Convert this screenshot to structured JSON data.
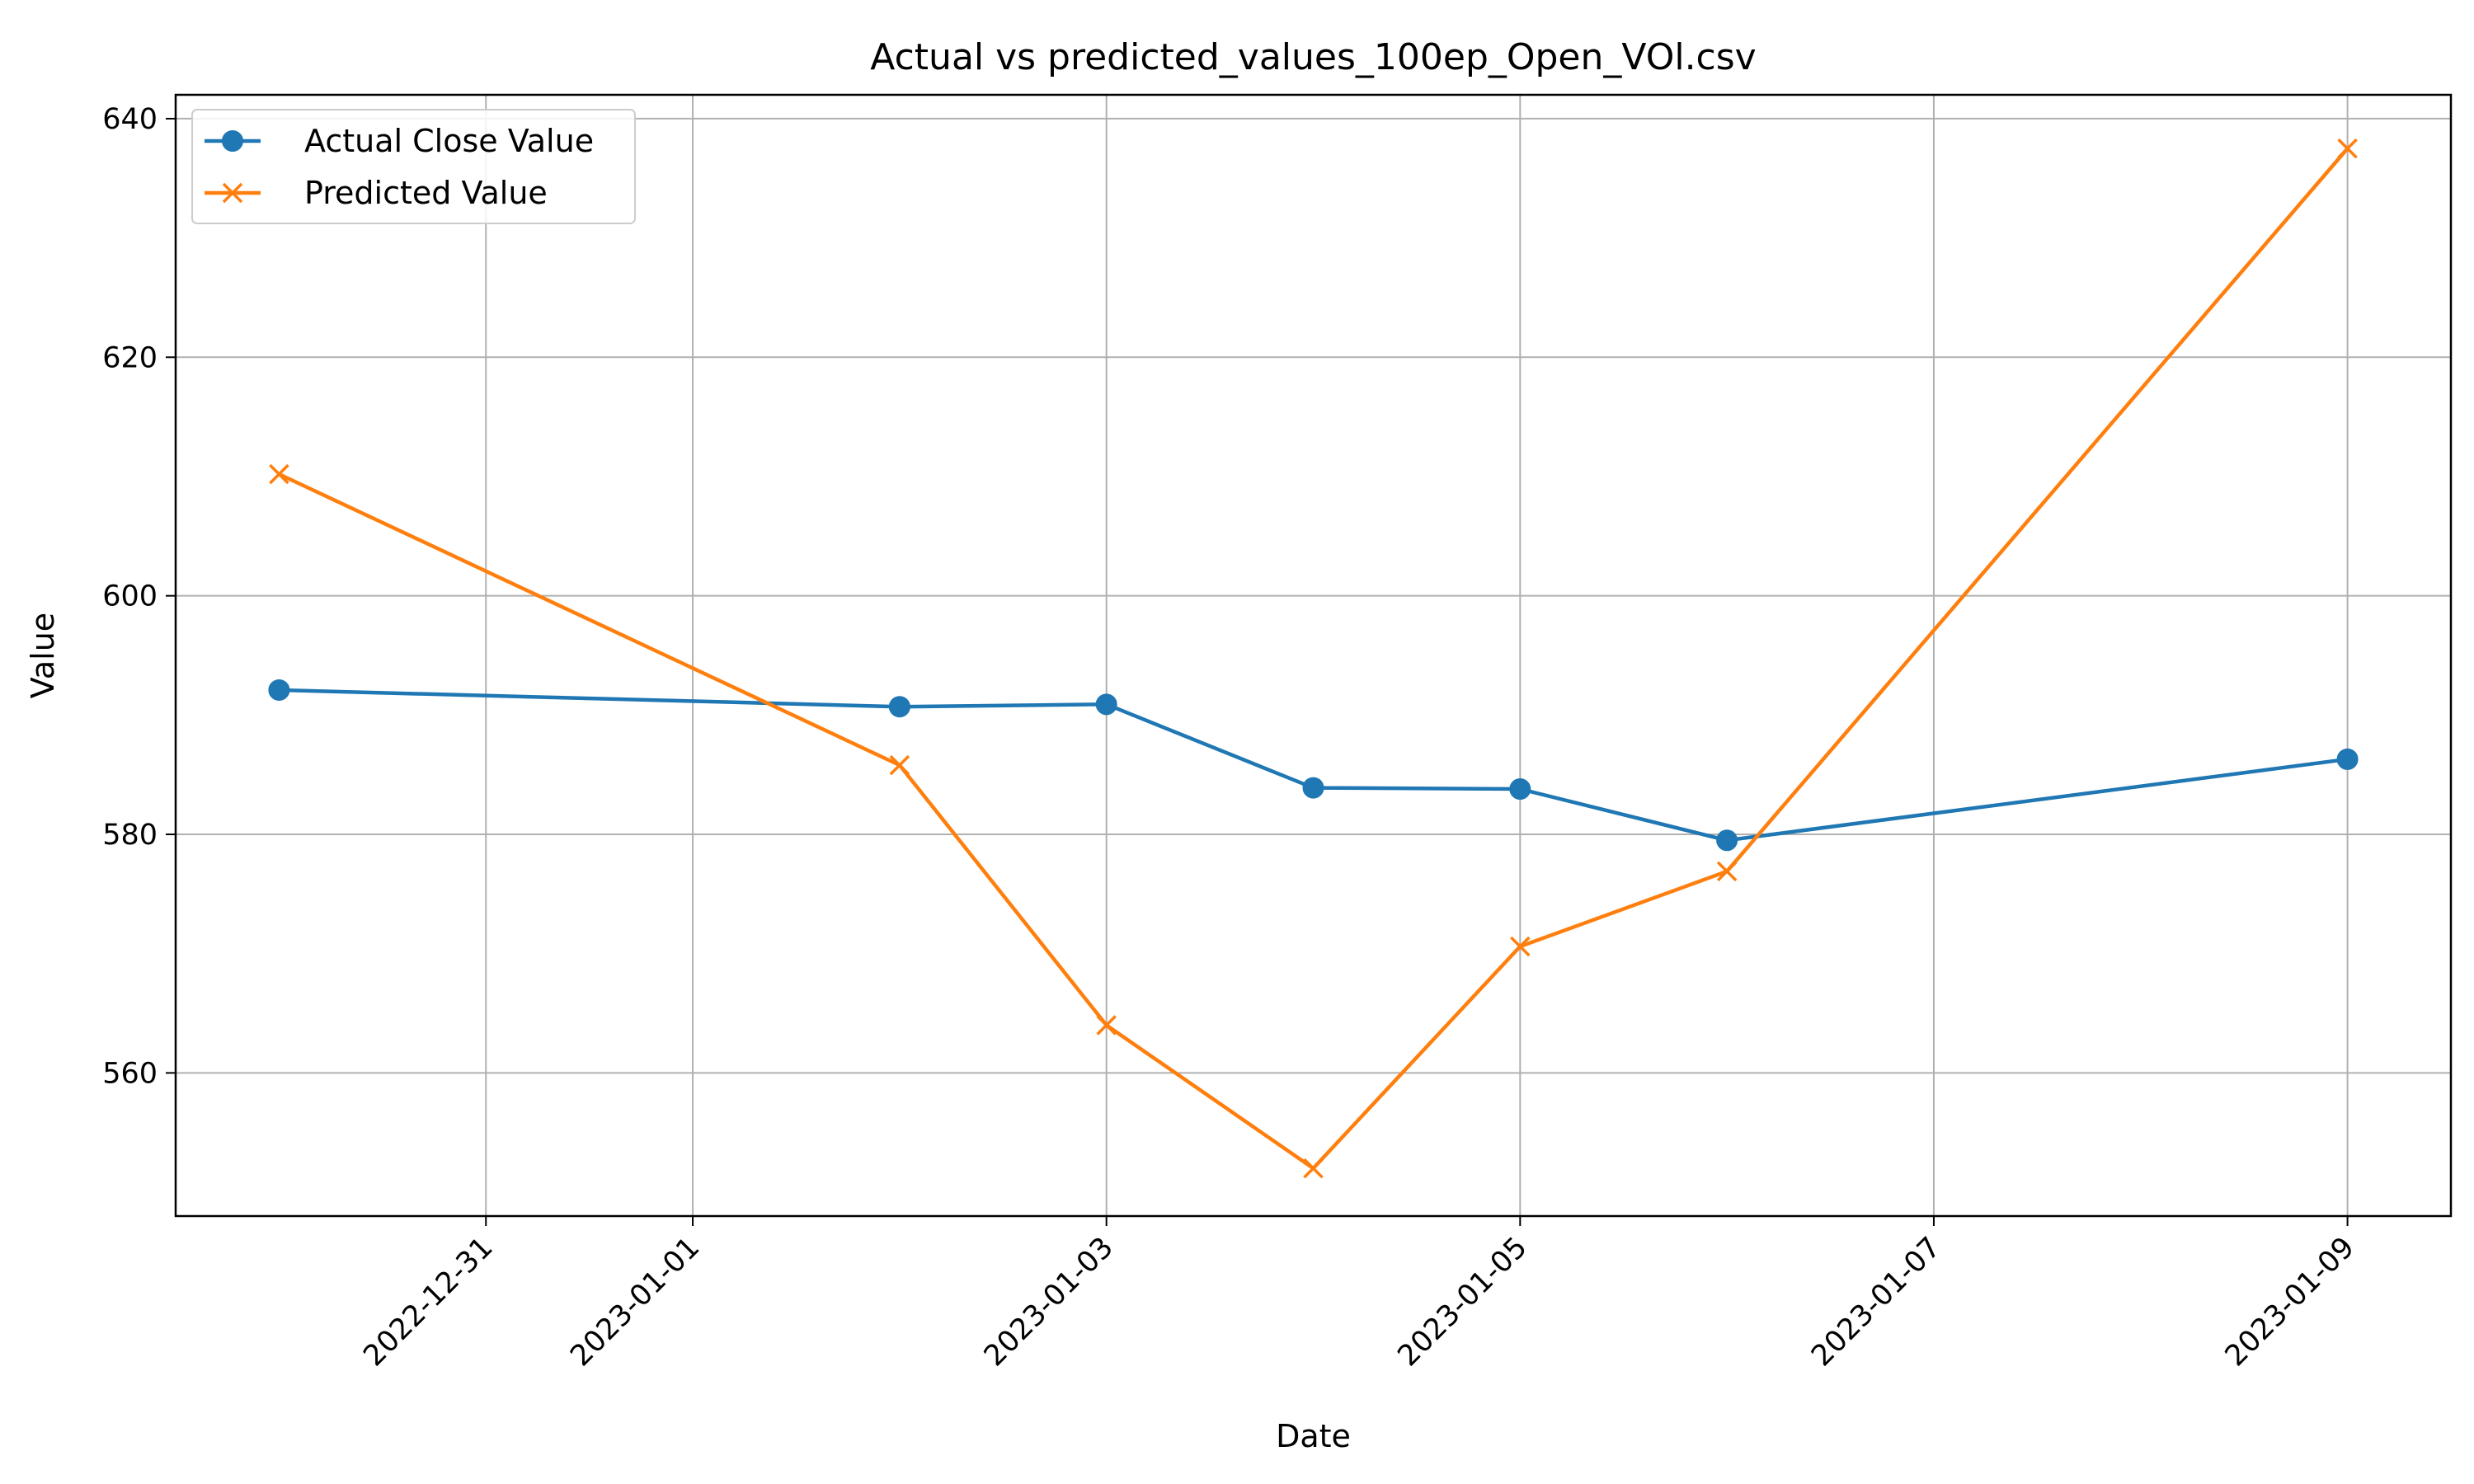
{
  "chart_data": {
    "type": "line",
    "title": "Actual vs predicted_values_100ep_Open_VOl.csv",
    "xlabel": "Date",
    "ylabel": "Value",
    "x_scale": "date",
    "xlim": [
      "2022-12-29T12:00",
      "2023-01-09T12:00"
    ],
    "ylim": [
      548,
      642
    ],
    "x_ticks": [
      "2022-12-31",
      "2023-01-01",
      "2023-01-03",
      "2023-01-05",
      "2023-01-07",
      "2023-01-09"
    ],
    "y_ticks": [
      560,
      580,
      600,
      620,
      640
    ],
    "grid": true,
    "legend_position": "upper-left",
    "series": [
      {
        "name": "Actual Close Value",
        "color": "#1f77b4",
        "marker": "circle",
        "points": [
          {
            "x": "2022-12-30",
            "y": 592.1
          },
          {
            "x": "2023-01-02",
            "y": 590.7
          },
          {
            "x": "2023-01-03",
            "y": 590.9
          },
          {
            "x": "2023-01-04",
            "y": 583.9
          },
          {
            "x": "2023-01-05",
            "y": 583.8
          },
          {
            "x": "2023-01-06",
            "y": 579.5
          },
          {
            "x": "2023-01-09",
            "y": 586.3
          }
        ]
      },
      {
        "name": "Predicted Value",
        "color": "#ff7f0e",
        "marker": "x",
        "points": [
          {
            "x": "2022-12-30",
            "y": 610.2
          },
          {
            "x": "2023-01-02",
            "y": 585.8
          },
          {
            "x": "2023-01-03",
            "y": 564.0
          },
          {
            "x": "2023-01-04",
            "y": 552.0
          },
          {
            "x": "2023-01-05",
            "y": 570.6
          },
          {
            "x": "2023-01-06",
            "y": 576.9
          },
          {
            "x": "2023-01-09",
            "y": 637.5
          }
        ]
      }
    ]
  }
}
